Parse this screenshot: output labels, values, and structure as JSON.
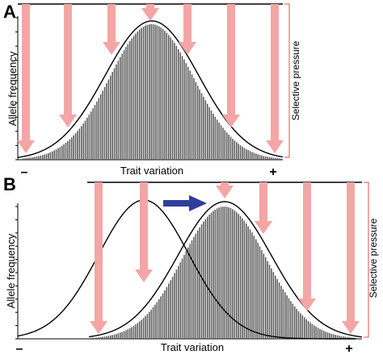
{
  "panels": [
    {
      "letter": "A",
      "x_label": "Trait variation",
      "y_label": "Allele frequency",
      "minus_sign": "–",
      "plus_sign": "+",
      "pressure_label": "Selective pressure",
      "shifted": false
    },
    {
      "letter": "B",
      "x_label": "Trait variation",
      "y_label": "Allele frequency",
      "minus_sign": "–",
      "plus_sign": "+",
      "pressure_label": "Selective pressure",
      "shifted": true
    }
  ],
  "colors": {
    "arrow_fill": "#f4a5a5",
    "bar_fill": "#555555",
    "curve_stroke": "#000000",
    "shift_arrow": "#2e3e9c",
    "bracket": "#e05050"
  }
}
